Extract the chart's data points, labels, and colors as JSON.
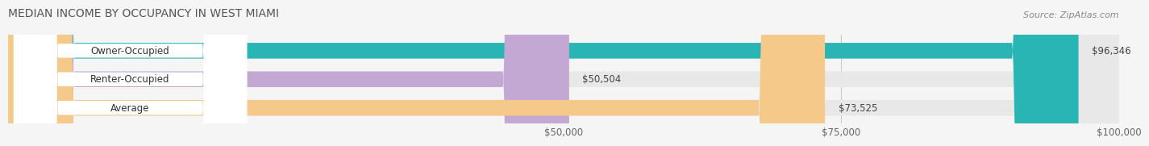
{
  "title": "MEDIAN INCOME BY OCCUPANCY IN WEST MIAMI",
  "source": "Source: ZipAtlas.com",
  "categories": [
    "Owner-Occupied",
    "Renter-Occupied",
    "Average"
  ],
  "values": [
    96346,
    50504,
    73525
  ],
  "bar_colors": [
    "#2ab5b5",
    "#c4a8d4",
    "#f5c98a"
  ],
  "value_labels": [
    "$96,346",
    "$50,504",
    "$73,525"
  ],
  "xlim": [
    0,
    100000
  ],
  "xticks": [
    50000,
    75000,
    100000
  ],
  "xtick_labels": [
    "$50,000",
    "$75,000",
    "$100,000"
  ],
  "background_color": "#f5f5f5",
  "bar_background_color": "#e8e8e8",
  "title_fontsize": 10,
  "source_fontsize": 8,
  "bar_height": 0.55
}
